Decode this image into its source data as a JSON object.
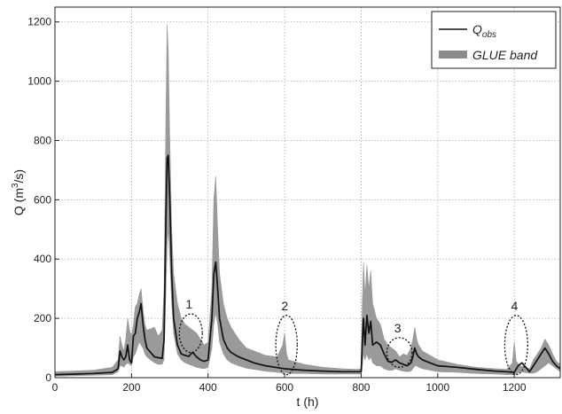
{
  "chart_data": {
    "type": "area",
    "xlabel": "t (h)",
    "ylabel": "Q (m³/s)",
    "ylabel_parts": {
      "main": "Q (m",
      "sup": "3",
      "tail": "/s)"
    },
    "xlim": [
      0,
      1320
    ],
    "ylim": [
      0,
      1250
    ],
    "x_ticks": [
      0,
      200,
      400,
      600,
      800,
      1000,
      1200
    ],
    "y_ticks": [
      0,
      200,
      400,
      600,
      800,
      1000,
      1200
    ],
    "grid": true,
    "legend_position": "top-right",
    "legend": [
      {
        "label_main": "Q",
        "label_sub": "obs",
        "kind": "line"
      },
      {
        "label_main": "GLUE band",
        "label_sub": "",
        "kind": "band"
      }
    ],
    "colors": {
      "observed": "#111111",
      "band": "#9a9a9a",
      "grid": "#aaaaaa"
    },
    "series": [
      {
        "name": "Qobs",
        "kind": "line",
        "x": [
          0,
          50,
          100,
          150,
          165,
          170,
          175,
          180,
          185,
          190,
          195,
          200,
          205,
          210,
          215,
          220,
          225,
          230,
          235,
          240,
          260,
          280,
          285,
          290,
          293,
          296,
          300,
          305,
          310,
          320,
          330,
          340,
          350,
          355,
          360,
          370,
          380,
          390,
          400,
          410,
          415,
          420,
          425,
          430,
          440,
          450,
          460,
          480,
          500,
          520,
          550,
          600,
          650,
          700,
          750,
          790,
          800,
          803,
          806,
          810,
          815,
          820,
          825,
          830,
          840,
          850,
          860,
          870,
          880,
          890,
          900,
          910,
          920,
          930,
          935,
          940,
          945,
          950,
          960,
          980,
          1000,
          1050,
          1100,
          1150,
          1180,
          1200,
          1210,
          1220,
          1240,
          1250,
          1260,
          1270,
          1280,
          1290,
          1300,
          1310,
          1320
        ],
        "y": [
          10,
          12,
          14,
          18,
          30,
          90,
          70,
          60,
          70,
          110,
          60,
          50,
          140,
          150,
          200,
          220,
          250,
          180,
          130,
          100,
          70,
          65,
          130,
          550,
          740,
          750,
          600,
          350,
          200,
          110,
          80,
          75,
          72,
          80,
          85,
          70,
          60,
          55,
          60,
          200,
          350,
          390,
          300,
          200,
          130,
          100,
          85,
          70,
          60,
          50,
          40,
          30,
          25,
          22,
          20,
          20,
          20,
          120,
          200,
          110,
          210,
          150,
          190,
          110,
          120,
          110,
          80,
          55,
          52,
          60,
          50,
          45,
          40,
          50,
          70,
          100,
          80,
          70,
          60,
          50,
          40,
          35,
          28,
          22,
          20,
          18,
          40,
          50,
          20,
          40,
          60,
          80,
          100,
          80,
          55,
          40,
          30
        ]
      },
      {
        "name": "GLUE band",
        "kind": "band",
        "x": [
          0,
          100,
          150,
          165,
          170,
          175,
          180,
          185,
          190,
          195,
          200,
          205,
          210,
          215,
          220,
          225,
          230,
          235,
          240,
          260,
          270,
          280,
          285,
          290,
          293,
          296,
          300,
          305,
          310,
          320,
          330,
          340,
          350,
          360,
          370,
          380,
          390,
          400,
          410,
          415,
          420,
          425,
          430,
          440,
          450,
          460,
          480,
          500,
          550,
          580,
          595,
          600,
          605,
          610,
          650,
          700,
          750,
          790,
          800,
          803,
          806,
          810,
          815,
          820,
          825,
          830,
          840,
          850,
          860,
          870,
          880,
          890,
          900,
          910,
          920,
          930,
          935,
          940,
          945,
          950,
          960,
          980,
          1000,
          1050,
          1100,
          1150,
          1180,
          1195,
          1200,
          1205,
          1215,
          1240,
          1250,
          1260,
          1270,
          1280,
          1290,
          1300,
          1310,
          1320
        ],
        "lower": [
          5,
          8,
          10,
          20,
          40,
          40,
          35,
          45,
          50,
          45,
          40,
          70,
          80,
          100,
          120,
          110,
          100,
          80,
          70,
          50,
          45,
          45,
          60,
          300,
          450,
          500,
          400,
          250,
          150,
          80,
          60,
          50,
          45,
          40,
          35,
          32,
          30,
          35,
          100,
          180,
          220,
          180,
          120,
          80,
          60,
          50,
          40,
          32,
          22,
          18,
          16,
          18,
          16,
          14,
          14,
          12,
          12,
          12,
          12,
          40,
          80,
          60,
          80,
          60,
          70,
          50,
          40,
          40,
          30,
          25,
          25,
          30,
          25,
          22,
          20,
          22,
          30,
          40,
          40,
          35,
          30,
          25,
          20,
          18,
          14,
          12,
          10,
          10,
          10,
          12,
          20,
          15,
          15,
          20,
          30,
          40,
          50,
          40,
          30,
          20
        ],
        "upper": [
          20,
          25,
          35,
          60,
          140,
          110,
          90,
          130,
          200,
          160,
          140,
          180,
          240,
          250,
          280,
          300,
          230,
          180,
          160,
          170,
          140,
          160,
          300,
          900,
          1190,
          1100,
          800,
          500,
          350,
          250,
          200,
          180,
          170,
          160,
          150,
          130,
          110,
          120,
          300,
          600,
          680,
          500,
          350,
          250,
          200,
          170,
          130,
          100,
          75,
          70,
          110,
          150,
          80,
          60,
          45,
          35,
          30,
          28,
          30,
          250,
          390,
          280,
          380,
          300,
          360,
          250,
          200,
          180,
          130,
          110,
          100,
          90,
          70,
          80,
          75,
          100,
          130,
          170,
          130,
          110,
          90,
          75,
          60,
          45,
          35,
          30,
          28,
          50,
          120,
          55,
          40,
          30,
          60,
          80,
          100,
          130,
          110,
          80,
          55,
          45
        ]
      }
    ],
    "annotations": [
      {
        "label": "1",
        "x": 355,
        "y": 150,
        "rx": 30,
        "ry": 65
      },
      {
        "label": "2",
        "x": 605,
        "y": 110,
        "rx": 28,
        "ry": 100
      },
      {
        "label": "3",
        "x": 900,
        "y": 85,
        "rx": 33,
        "ry": 50
      },
      {
        "label": "4",
        "x": 1205,
        "y": 110,
        "rx": 30,
        "ry": 100
      }
    ]
  }
}
